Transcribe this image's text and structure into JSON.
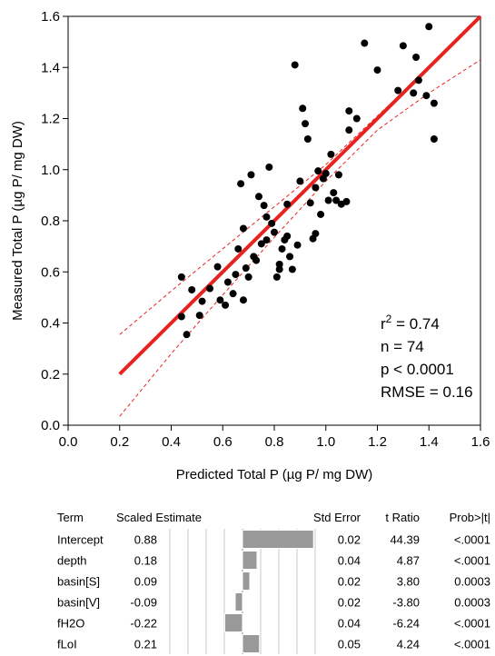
{
  "chart_data": [
    {
      "type": "scatter",
      "xlabel": "Predicted Total P (µg P/ mg DW)",
      "ylabel": "Measured Total P (µg P/ mg DW)",
      "xlim": [
        0.0,
        1.6
      ],
      "ylim": [
        0.0,
        1.6
      ],
      "xticks": [
        "0.0",
        "0.2",
        "0.4",
        "0.6",
        "0.8",
        "1.0",
        "1.2",
        "1.4",
        "1.6"
      ],
      "yticks": [
        "0.0",
        "0.2",
        "0.4",
        "0.6",
        "0.8",
        "1.0",
        "1.2",
        "1.4",
        "1.6"
      ],
      "grid": false,
      "point_color": "#000000",
      "line_color": "#e8221f",
      "fit_line": {
        "x": [
          0.2,
          1.6
        ],
        "y": [
          0.2,
          1.6
        ]
      },
      "confidence_upper": {
        "x": [
          0.2,
          0.4,
          0.6,
          0.8,
          1.0,
          1.2,
          1.4,
          1.6
        ],
        "y": [
          0.355,
          0.525,
          0.69,
          0.855,
          1.02,
          1.21,
          1.4,
          1.6
        ]
      },
      "confidence_lower": {
        "x": [
          0.2,
          0.4,
          0.6,
          0.8,
          1.0,
          1.2,
          1.4,
          1.6
        ],
        "y": [
          0.035,
          0.28,
          0.51,
          0.735,
          0.955,
          1.155,
          1.3,
          1.43
        ]
      },
      "points": [
        [
          0.44,
          0.58
        ],
        [
          0.44,
          0.425
        ],
        [
          0.46,
          0.355
        ],
        [
          0.48,
          0.53
        ],
        [
          0.51,
          0.43
        ],
        [
          0.52,
          0.485
        ],
        [
          0.55,
          0.535
        ],
        [
          0.58,
          0.62
        ],
        [
          0.59,
          0.49
        ],
        [
          0.61,
          0.47
        ],
        [
          0.62,
          0.56
        ],
        [
          0.64,
          0.515
        ],
        [
          0.65,
          0.59
        ],
        [
          0.66,
          0.69
        ],
        [
          0.67,
          0.945
        ],
        [
          0.68,
          0.77
        ],
        [
          0.68,
          0.49
        ],
        [
          0.69,
          0.615
        ],
        [
          0.7,
          0.58
        ],
        [
          0.71,
          0.98
        ],
        [
          0.72,
          0.66
        ],
        [
          0.73,
          0.645
        ],
        [
          0.74,
          0.895
        ],
        [
          0.75,
          0.71
        ],
        [
          0.76,
          0.86
        ],
        [
          0.77,
          0.815
        ],
        [
          0.77,
          0.725
        ],
        [
          0.78,
          1.01
        ],
        [
          0.79,
          0.79
        ],
        [
          0.8,
          0.755
        ],
        [
          0.81,
          0.58
        ],
        [
          0.82,
          0.63
        ],
        [
          0.82,
          0.61
        ],
        [
          0.83,
          0.69
        ],
        [
          0.84,
          0.725
        ],
        [
          0.85,
          0.74
        ],
        [
          0.85,
          0.865
        ],
        [
          0.86,
          0.66
        ],
        [
          0.87,
          0.61
        ],
        [
          0.88,
          1.41
        ],
        [
          0.89,
          0.705
        ],
        [
          0.9,
          0.955
        ],
        [
          0.91,
          1.24
        ],
        [
          0.92,
          1.18
        ],
        [
          0.93,
          1.12
        ],
        [
          0.94,
          0.87
        ],
        [
          0.95,
          0.73
        ],
        [
          0.96,
          0.93
        ],
        [
          0.96,
          0.75
        ],
        [
          0.97,
          0.995
        ],
        [
          0.98,
          0.825
        ],
        [
          0.99,
          0.965
        ],
        [
          1.0,
          0.985
        ],
        [
          1.01,
          0.88
        ],
        [
          1.02,
          1.06
        ],
        [
          1.03,
          0.91
        ],
        [
          1.04,
          0.88
        ],
        [
          1.05,
          0.98
        ],
        [
          1.06,
          0.865
        ],
        [
          1.08,
          0.875
        ],
        [
          1.09,
          1.23
        ],
        [
          1.09,
          1.155
        ],
        [
          1.12,
          1.2
        ],
        [
          1.15,
          1.495
        ],
        [
          1.2,
          1.39
        ],
        [
          1.28,
          1.31
        ],
        [
          1.3,
          1.485
        ],
        [
          1.34,
          1.3
        ],
        [
          1.35,
          1.44
        ],
        [
          1.36,
          1.35
        ],
        [
          1.39,
          1.29
        ],
        [
          1.4,
          1.56
        ],
        [
          1.42,
          1.26
        ],
        [
          1.42,
          1.12
        ]
      ],
      "stats": {
        "r2_base": "r",
        "r2_exp": "2",
        "r2_rest": " = 0.74",
        "n": "n = 74",
        "p": "p < 0.0001",
        "rmse": "RMSE = 0.16"
      }
    },
    {
      "type": "table",
      "bar_color": "#999999",
      "bar_range": [
        -0.9,
        0.9
      ],
      "columns": [
        "Term",
        "Scaled Estimate",
        "Std Error",
        "t Ratio",
        "Prob>|t|"
      ],
      "rows": [
        {
          "term": "Intercept",
          "estimate": 0.88,
          "estimate_text": "0.88",
          "std_error": "0.02",
          "t_ratio": "44.39",
          "prob": "<.0001"
        },
        {
          "term": "depth",
          "estimate": 0.18,
          "estimate_text": "0.18",
          "std_error": "0.04",
          "t_ratio": "4.87",
          "prob": "<.0001"
        },
        {
          "term": "basin[S]",
          "estimate": 0.09,
          "estimate_text": "0.09",
          "std_error": "0.02",
          "t_ratio": "3.80",
          "prob": "0.0003"
        },
        {
          "term": "basin[V]",
          "estimate": -0.09,
          "estimate_text": "-0.09",
          "std_error": "0.02",
          "t_ratio": "-3.80",
          "prob": "0.0003"
        },
        {
          "term": "fH2O",
          "estimate": -0.22,
          "estimate_text": "-0.22",
          "std_error": "0.04",
          "t_ratio": "-6.24",
          "prob": "<.0001"
        },
        {
          "term": "fLoI",
          "estimate": 0.21,
          "estimate_text": "0.21",
          "std_error": "0.05",
          "t_ratio": "4.24",
          "prob": "<.0001"
        }
      ]
    }
  ]
}
